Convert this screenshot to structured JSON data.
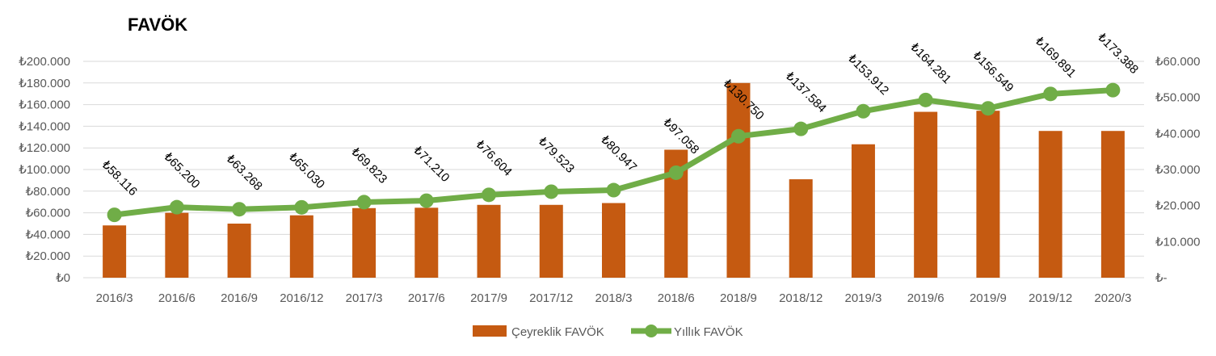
{
  "chart_data": {
    "type": "bar",
    "title": "FAVÖK",
    "categories": [
      "2016/3",
      "2016/6",
      "2016/9",
      "2016/12",
      "2017/3",
      "2017/6",
      "2017/9",
      "2017/12",
      "2018/3",
      "2018/6",
      "2018/9",
      "2018/12",
      "2019/3",
      "2019/6",
      "2019/9",
      "2019/12",
      "2020/3"
    ],
    "left_axis": {
      "ylim": [
        0,
        200000
      ],
      "tick_labels": [
        "₺0",
        "₺20.000",
        "₺40.000",
        "₺60.000",
        "₺80.000",
        "₺100.000",
        "₺120.000",
        "₺140.000",
        "₺160.000",
        "₺180.000",
        "₺200.000"
      ]
    },
    "right_axis": {
      "ylim": [
        0,
        60000
      ],
      "tick_labels": [
        "₺-",
        "₺10.000",
        "₺20.000",
        "₺30.000",
        "₺40.000",
        "₺50.000",
        "₺60.000"
      ]
    },
    "gridlines": true,
    "legend_position": "bottom",
    "series": [
      {
        "name": "Çeyreklik FAVÖK",
        "type": "bar",
        "axis": "right",
        "color": "#C55A11",
        "values": [
          14500,
          18000,
          15000,
          17300,
          19300,
          19400,
          20200,
          20200,
          20700,
          35500,
          54000,
          27300,
          37000,
          46000,
          46300,
          40700,
          40700
        ]
      },
      {
        "name": "Yıllık FAVÖK",
        "type": "line",
        "axis": "left",
        "color": "#70AD47",
        "values": [
          58116,
          65200,
          63268,
          65030,
          69823,
          71210,
          76604,
          79523,
          80947,
          97058,
          130750,
          137584,
          153912,
          164281,
          156549,
          169891,
          173388
        ],
        "data_labels": [
          "₺58.116",
          "₺65.200",
          "₺63.268",
          "₺65.030",
          "₺69.823",
          "₺71.210",
          "₺76.604",
          "₺79.523",
          "₺80.947",
          "₺97.058",
          "₺130.750",
          "₺137.584",
          "₺153.912",
          "₺164.281",
          "₺156.549",
          "₺169.891",
          "₺173.388"
        ]
      }
    ]
  }
}
